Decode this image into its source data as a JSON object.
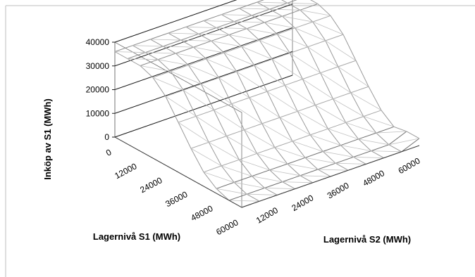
{
  "chart_data": {
    "type": "surface",
    "zlabel": "Inköp av S1 (MWh)",
    "xlabel": "Lagernivå S1 (MWh)",
    "ylabel": "Lagernivå S2 (MWh)",
    "zlim": [
      0,
      40000
    ],
    "z_ticks": [
      "0",
      "10000",
      "20000",
      "30000",
      "40000"
    ],
    "s1_ticks": [
      "0",
      "12000",
      "24000",
      "36000",
      "48000",
      "60000"
    ],
    "s2_ticks": [
      "12000",
      "24000",
      "36000",
      "48000",
      "60000"
    ],
    "s1_levels": [
      0,
      6000,
      12000,
      18000,
      24000,
      30000,
      36000,
      42000,
      48000,
      54000,
      60000
    ],
    "s2_levels": [
      0,
      6000,
      12000,
      18000,
      24000,
      30000,
      36000,
      42000,
      48000,
      54000,
      60000
    ],
    "purchase_profile_by_s1": [
      36000,
      36000,
      36000,
      34000,
      29000,
      21000,
      13000,
      6000,
      2000,
      0,
      0
    ],
    "grid": true,
    "legend": "none"
  }
}
